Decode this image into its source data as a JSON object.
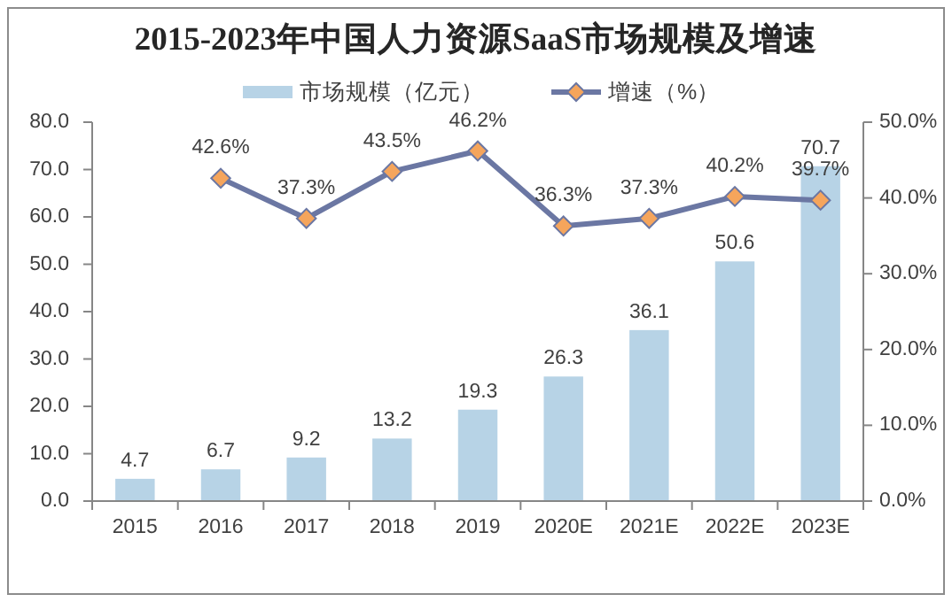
{
  "chart_data": {
    "type": "bar",
    "title": "2015-2023年中国人力资源SaaS市场规模及增速",
    "categories": [
      "2015",
      "2016",
      "2017",
      "2018",
      "2019",
      "2020E",
      "2021E",
      "2022E",
      "2023E"
    ],
    "series": [
      {
        "name": "市场规模（亿元）",
        "color": "#b7d3e6",
        "values": [
          4.7,
          6.7,
          9.2,
          13.2,
          19.3,
          26.3,
          36.1,
          50.6,
          70.7
        ],
        "value_labels": [
          "4.7",
          "6.7",
          "9.2",
          "13.2",
          "19.3",
          "26.3",
          "36.1",
          "50.6",
          "70.7"
        ]
      },
      {
        "name": "增速（%）",
        "type": "line",
        "axis": "y2",
        "color": "#6b77a3",
        "marker": "diamond",
        "colors": [
          "#f5a55c",
          "#f5a55c",
          "#f5a55c",
          "#f5a55c",
          "#f5a55c",
          "#f5a55c",
          "#f5a55c",
          "#f5a55c",
          "#f5a55c"
        ],
        "values": [
          null,
          42.6,
          37.3,
          43.5,
          46.2,
          36.3,
          37.3,
          40.2,
          39.7
        ],
        "value_labels": [
          null,
          "42.6%",
          "37.3%",
          "43.5%",
          "46.2%",
          "36.3%",
          "37.3%",
          "40.2%",
          "39.7%"
        ]
      }
    ],
    "ylim": [
      0,
      80
    ],
    "yticks": [
      {
        "value": 0,
        "label": "0.0"
      },
      {
        "value": 10,
        "label": "10.0"
      },
      {
        "value": 20,
        "label": "20.0"
      },
      {
        "value": 30,
        "label": "30.0"
      },
      {
        "value": 40,
        "label": "40.0"
      },
      {
        "value": 50,
        "label": "50.0"
      },
      {
        "value": 60,
        "label": "60.0"
      },
      {
        "value": 70,
        "label": "70.0"
      },
      {
        "value": 80,
        "label": "80.0"
      }
    ],
    "y2lim": [
      0,
      50
    ],
    "y2ticks": [
      {
        "value": 0,
        "label": "0.0%"
      },
      {
        "value": 10,
        "label": "10.0%"
      },
      {
        "value": 20,
        "label": "20.0%"
      },
      {
        "value": 30,
        "label": "30.0%"
      },
      {
        "value": 40,
        "label": "40.0%"
      },
      {
        "value": 50,
        "label": "50.0%"
      }
    ],
    "grid": false,
    "legend": "top"
  }
}
